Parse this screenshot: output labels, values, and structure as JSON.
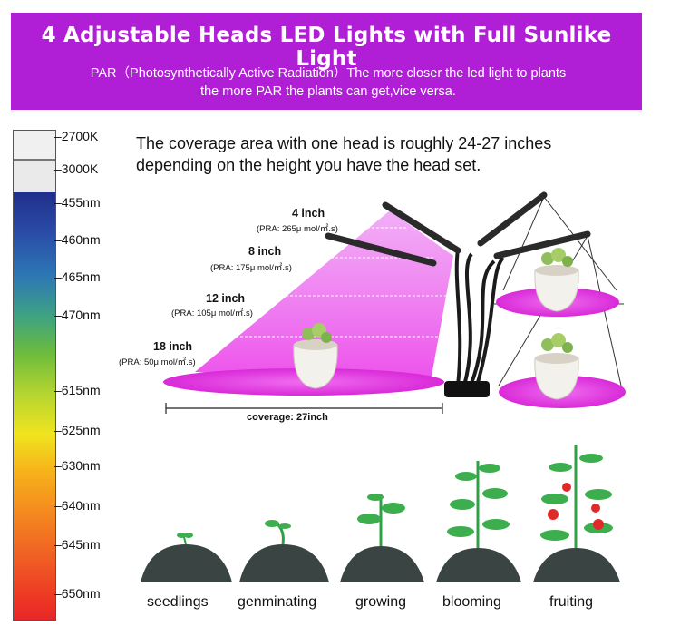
{
  "banner": {
    "title": "4 Adjustable Heads LED Lights with Full Sunlike Light",
    "subtitle_line1": "PAR（Photosynthetically Active Radiation）The more closer the led light to plants",
    "subtitle_line2": "the more PAR the plants can get,vice versa.",
    "color": "#b01ed6"
  },
  "spectrum_scale": [
    "2700K",
    "3000K",
    "455nm",
    "460nm",
    "465nm",
    "470nm",
    "615nm",
    "625nm",
    "630nm",
    "640nm",
    "645nm",
    "650nm"
  ],
  "coverage_text": {
    "line1": "The coverage area with one head is roughly 24-27 inches",
    "line2": "depending on the height you have the head set."
  },
  "heights": [
    {
      "height": "4 inch",
      "par": "(PRA: 265μ mol/㎡.s)"
    },
    {
      "height": "8 inch",
      "par": "(PRA: 175μ mol/㎡.s)"
    },
    {
      "height": "12 inch",
      "par": "(PRA: 105μ mol/㎡.s)"
    },
    {
      "height": "18 inch",
      "par": "(PRA: 50μ mol/㎡.s)"
    }
  ],
  "coverage_label": "coverage: 27inch",
  "stages": [
    "seedlings",
    "genminating",
    "growing",
    "blooming",
    "fruiting"
  ],
  "colors": {
    "light_pink": "#e23fe6",
    "soil": "#3a4442",
    "leaf": "#2fa043",
    "fruit": "#e02a2a"
  }
}
